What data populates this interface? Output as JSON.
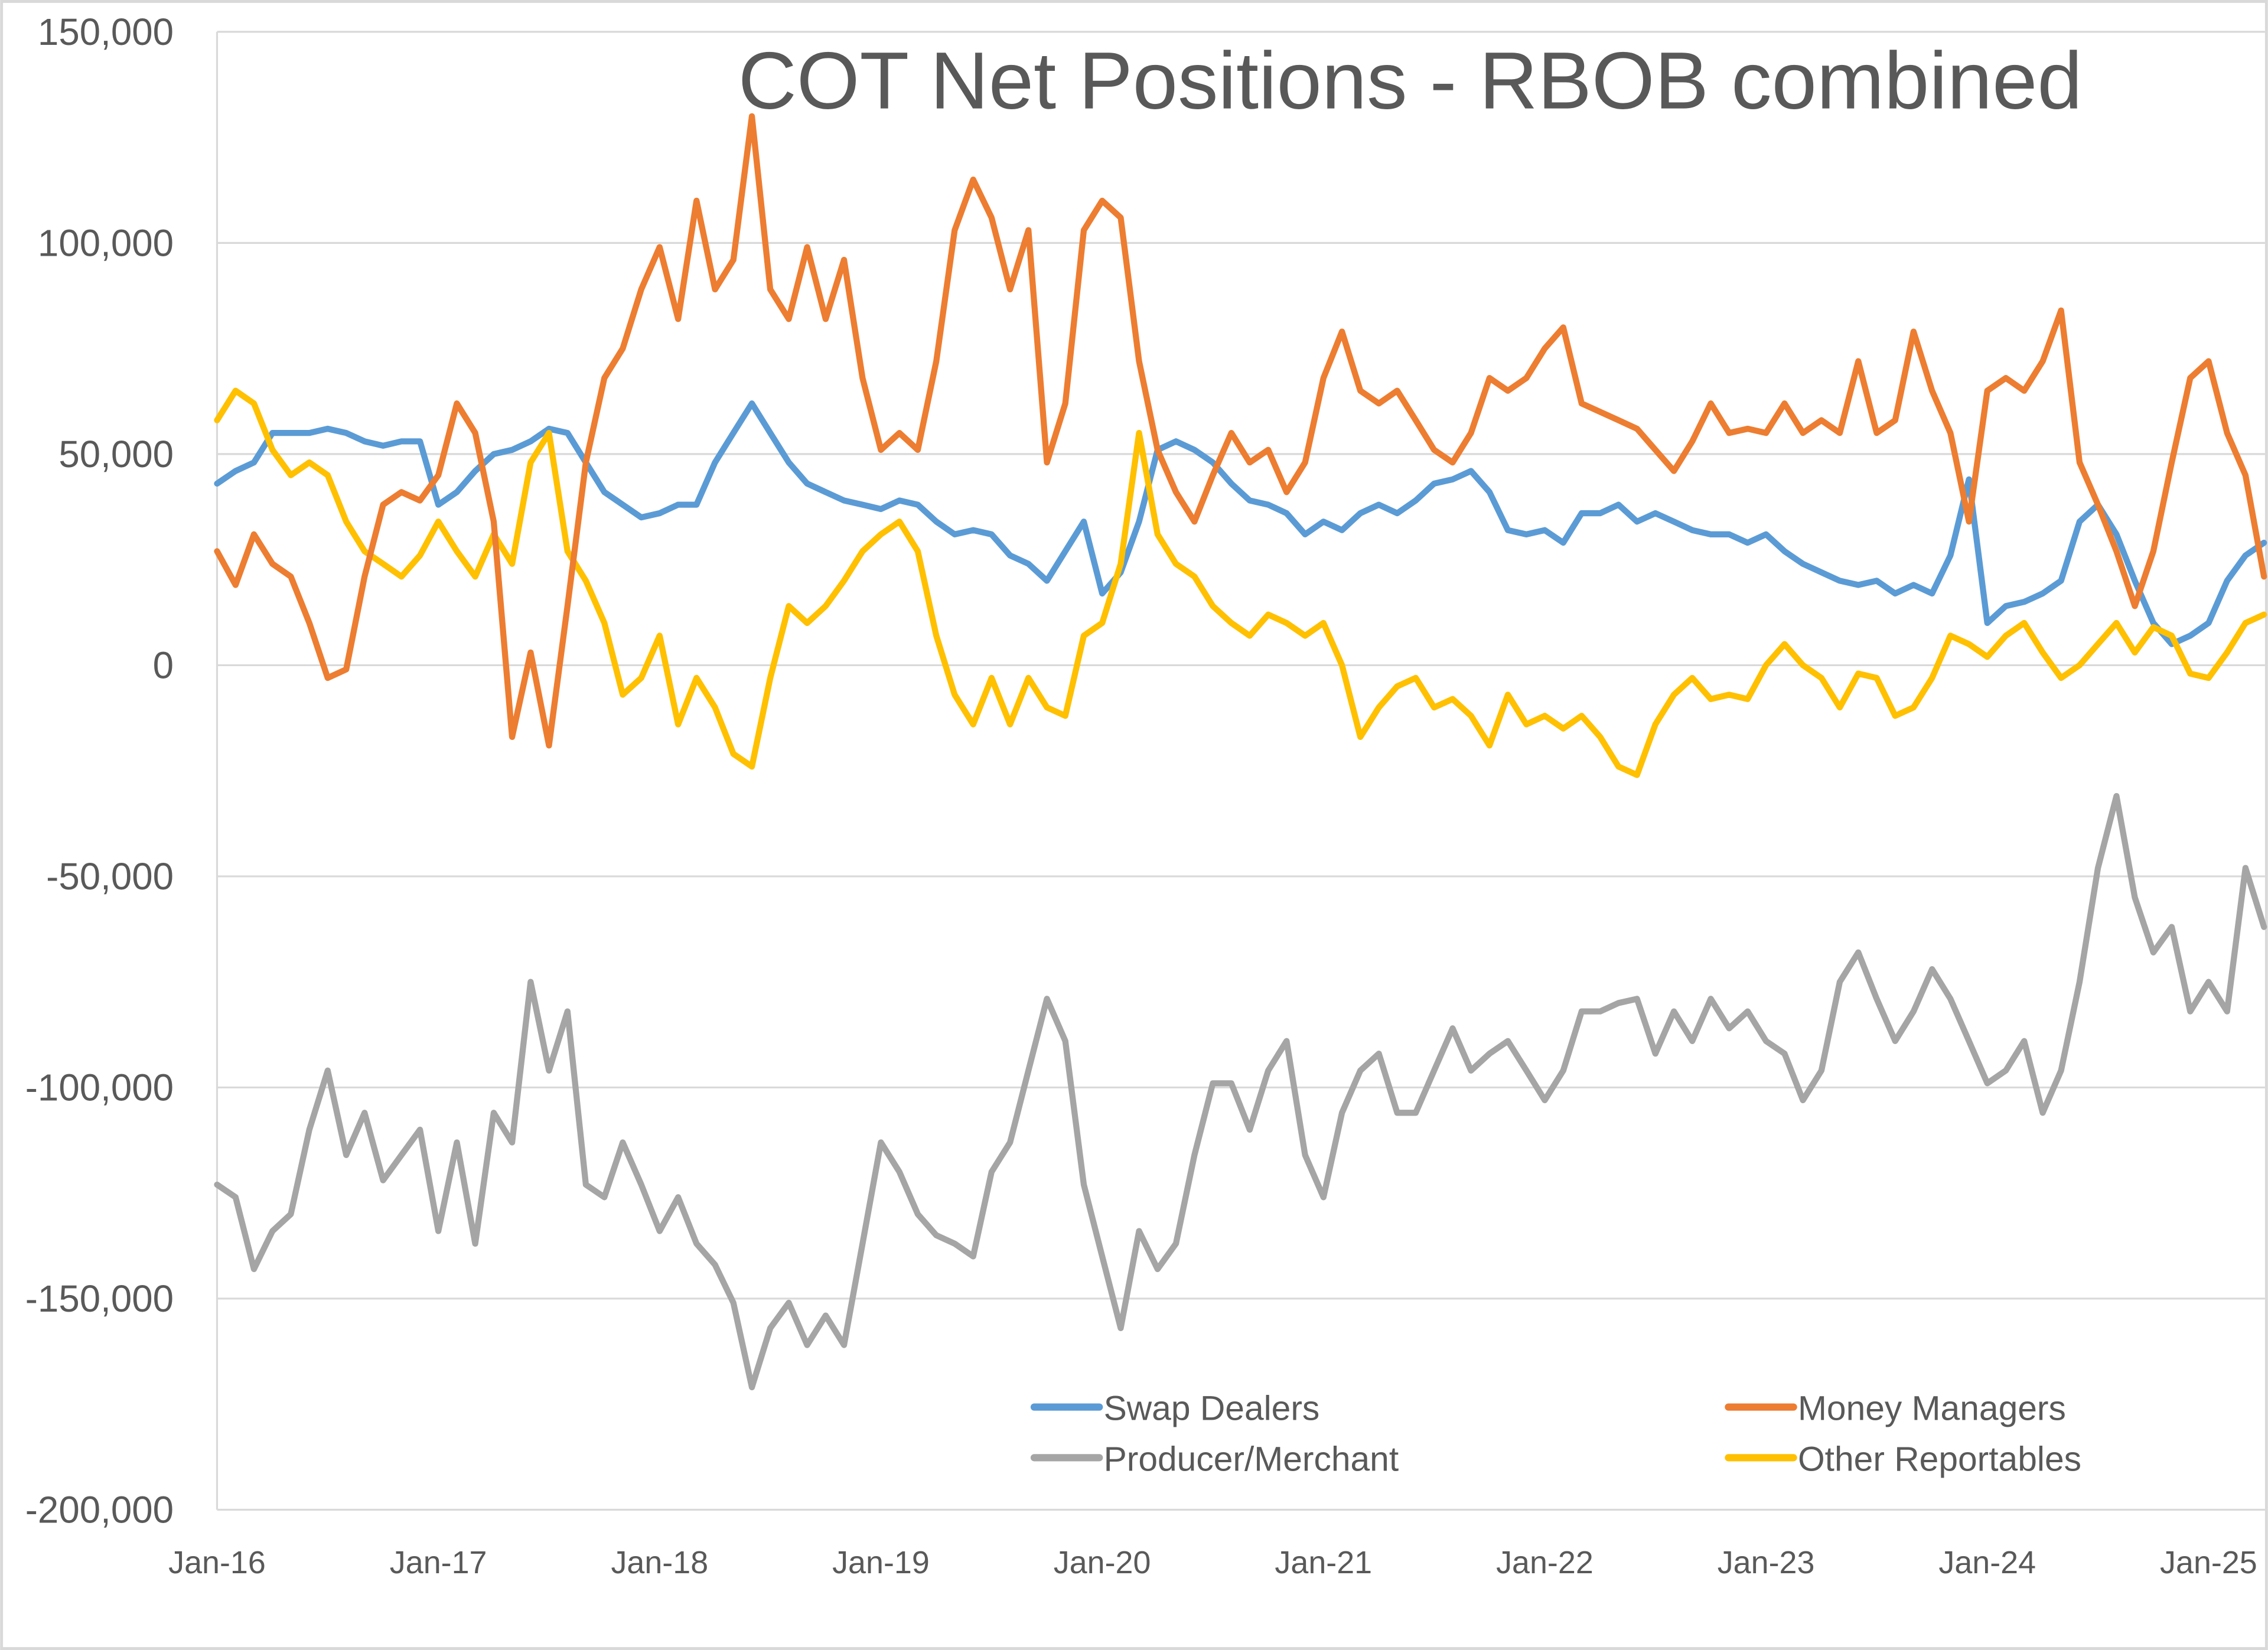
{
  "chart_data": {
    "type": "line",
    "title": "COT Net Positions - RBOB combined",
    "xlabel": "",
    "ylabel": "",
    "ylim": [
      -200000,
      150000
    ],
    "yticks": [
      "150,000",
      "100,000",
      "50,000",
      "0",
      "-50,000",
      "-100,000",
      "-150,000",
      "-200,000"
    ],
    "ytick_values": [
      150000,
      100000,
      50000,
      0,
      -50000,
      -100000,
      -150000,
      -200000
    ],
    "xticks": [
      "Jan-16",
      "Jan-17",
      "Jan-18",
      "Jan-19",
      "Jan-20",
      "Jan-21",
      "Jan-22",
      "Jan-23",
      "Jan-24",
      "Jan-25"
    ],
    "xtick_dates": [
      "2016-01",
      "2017-01",
      "2018-01",
      "2019-01",
      "2020-01",
      "2021-01",
      "2022-01",
      "2023-01",
      "2024-01",
      "2025-01"
    ],
    "grid": true,
    "legend_position": "bottom",
    "x": [
      "2016-01",
      "2016-02",
      "2016-03",
      "2016-04",
      "2016-05",
      "2016-06",
      "2016-07",
      "2016-08",
      "2016-09",
      "2016-10",
      "2016-11",
      "2016-12",
      "2017-01",
      "2017-02",
      "2017-03",
      "2017-04",
      "2017-05",
      "2017-06",
      "2017-07",
      "2017-08",
      "2017-09",
      "2017-10",
      "2017-11",
      "2017-12",
      "2018-01",
      "2018-02",
      "2018-03",
      "2018-04",
      "2018-05",
      "2018-06",
      "2018-07",
      "2018-08",
      "2018-09",
      "2018-10",
      "2018-11",
      "2018-12",
      "2019-01",
      "2019-02",
      "2019-03",
      "2019-04",
      "2019-05",
      "2019-06",
      "2019-07",
      "2019-08",
      "2019-09",
      "2019-10",
      "2019-11",
      "2019-12",
      "2020-01",
      "2020-02",
      "2020-03",
      "2020-04",
      "2020-05",
      "2020-06",
      "2020-07",
      "2020-08",
      "2020-09",
      "2020-10",
      "2020-11",
      "2020-12",
      "2021-01",
      "2021-02",
      "2021-03",
      "2021-04",
      "2021-05",
      "2021-06",
      "2021-07",
      "2021-08",
      "2021-09",
      "2021-10",
      "2021-11",
      "2021-12",
      "2022-01",
      "2022-02",
      "2022-03",
      "2022-04",
      "2022-05",
      "2022-06",
      "2022-07",
      "2022-08",
      "2022-09",
      "2022-10",
      "2022-11",
      "2022-12",
      "2023-01",
      "2023-02",
      "2023-03",
      "2023-04",
      "2023-05",
      "2023-06",
      "2023-07",
      "2023-08",
      "2023-09",
      "2023-10",
      "2023-11",
      "2023-12",
      "2024-01",
      "2024-02",
      "2024-03",
      "2024-04",
      "2024-05",
      "2024-06",
      "2024-07",
      "2024-08",
      "2024-09",
      "2024-10",
      "2024-11",
      "2024-12",
      "2025-01",
      "2025-02",
      "2025-03",
      "2025-04"
    ],
    "series": [
      {
        "name": "Swap Dealers",
        "color": "#5b9bd5",
        "values": [
          43000,
          46000,
          48000,
          55000,
          55000,
          55000,
          56000,
          55000,
          53000,
          52000,
          53000,
          53000,
          38000,
          41000,
          46000,
          50000,
          51000,
          53000,
          56000,
          55000,
          48000,
          41000,
          38000,
          35000,
          36000,
          38000,
          38000,
          48000,
          55000,
          62000,
          55000,
          48000,
          43000,
          41000,
          39000,
          38000,
          37000,
          39000,
          38000,
          34000,
          31000,
          32000,
          31000,
          26000,
          24000,
          20000,
          27000,
          34000,
          17000,
          22000,
          34000,
          51000,
          53000,
          51000,
          48000,
          43000,
          39000,
          38000,
          36000,
          31000,
          34000,
          32000,
          36000,
          38000,
          36000,
          39000,
          43000,
          44000,
          46000,
          41000,
          32000,
          31000,
          32000,
          29000,
          36000,
          36000,
          38000,
          34000,
          36000,
          34000,
          32000,
          31000,
          31000,
          29000,
          31000,
          27000,
          24000,
          22000,
          20000,
          19000,
          20000,
          17000,
          19000,
          17000,
          26000,
          44000,
          10000,
          14000,
          15000,
          17000,
          20000,
          34000,
          38000,
          31000,
          20000,
          10000,
          5000,
          7000,
          10000,
          20000,
          26000,
          29000
        ]
      },
      {
        "name": "Money Managers",
        "color": "#ed7d31",
        "values": [
          27000,
          19000,
          31000,
          24000,
          21000,
          10000,
          -3000,
          -1000,
          21000,
          38000,
          41000,
          39000,
          45000,
          62000,
          55000,
          34000,
          -17000,
          3000,
          -19000,
          14000,
          48000,
          68000,
          75000,
          89000,
          99000,
          82000,
          110000,
          89000,
          96000,
          130000,
          89000,
          82000,
          99000,
          82000,
          96000,
          68000,
          51000,
          55000,
          51000,
          72000,
          103000,
          115000,
          106000,
          89000,
          103000,
          48000,
          62000,
          103000,
          110000,
          106000,
          72000,
          51000,
          41000,
          34000,
          45000,
          55000,
          48000,
          51000,
          41000,
          48000,
          68000,
          79000,
          65000,
          62000,
          65000,
          58000,
          51000,
          48000,
          55000,
          68000,
          65000,
          68000,
          75000,
          80000,
          62000,
          60000,
          58000,
          56000,
          51000,
          46000,
          53000,
          62000,
          55000,
          56000,
          55000,
          62000,
          55000,
          58000,
          55000,
          72000,
          55000,
          58000,
          79000,
          65000,
          55000,
          34000,
          65000,
          68000,
          65000,
          72000,
          84000,
          48000,
          38000,
          27000,
          14000,
          27000,
          48000,
          68000,
          72000,
          55000,
          45000,
          21000
        ]
      },
      {
        "name": "Producer/Merchant",
        "color": "#a5a5a5",
        "values": [
          -123000,
          -126000,
          -143000,
          -134000,
          -130000,
          -110000,
          -96000,
          -116000,
          -106000,
          -122000,
          -116000,
          -110000,
          -134000,
          -113000,
          -137000,
          -106000,
          -113000,
          -75000,
          -96000,
          -82000,
          -123000,
          -126000,
          -113000,
          -123000,
          -134000,
          -126000,
          -137000,
          -142000,
          -151000,
          -171000,
          -157000,
          -151000,
          -161000,
          -154000,
          -161000,
          -137000,
          -113000,
          -120000,
          -130000,
          -135000,
          -137000,
          -140000,
          -120000,
          -113000,
          -96000,
          -79000,
          -89000,
          -123000,
          -140000,
          -157000,
          -134000,
          -143000,
          -137000,
          -116000,
          -99000,
          -99000,
          -110000,
          -96000,
          -89000,
          -116000,
          -126000,
          -106000,
          -96000,
          -92000,
          -106000,
          -106000,
          -96000,
          -86000,
          -96000,
          -92000,
          -89000,
          -96000,
          -103000,
          -96000,
          -82000,
          -82000,
          -80000,
          -79000,
          -92000,
          -82000,
          -89000,
          -79000,
          -86000,
          -82000,
          -89000,
          -92000,
          -103000,
          -96000,
          -75000,
          -68000,
          -79000,
          -89000,
          -82000,
          -72000,
          -79000,
          -89000,
          -99000,
          -96000,
          -89000,
          -106000,
          -96000,
          -75000,
          -48000,
          -31000,
          -55000,
          -68000,
          -62000,
          -82000,
          -75000,
          -82000,
          -48000,
          -62000
        ]
      },
      {
        "name": "Other Reportables",
        "color": "#ffc000",
        "values": [
          58000,
          65000,
          62000,
          51000,
          45000,
          48000,
          45000,
          34000,
          27000,
          24000,
          21000,
          26000,
          34000,
          27000,
          21000,
          31000,
          24000,
          48000,
          55000,
          27000,
          20000,
          10000,
          -7000,
          -3000,
          7000,
          -14000,
          -3000,
          -10000,
          -21000,
          -24000,
          -3000,
          14000,
          10000,
          14000,
          20000,
          27000,
          31000,
          34000,
          27000,
          7000,
          -7000,
          -14000,
          -3000,
          -14000,
          -3000,
          -10000,
          -12000,
          7000,
          10000,
          24000,
          55000,
          31000,
          24000,
          21000,
          14000,
          10000,
          7000,
          12000,
          10000,
          7000,
          10000,
          0,
          -17000,
          -10000,
          -5000,
          -3000,
          -10000,
          -8000,
          -12000,
          -19000,
          -7000,
          -14000,
          -12000,
          -15000,
          -12000,
          -17000,
          -24000,
          -26000,
          -14000,
          -7000,
          -3000,
          -8000,
          -7000,
          -8000,
          0,
          5000,
          0,
          -3000,
          -10000,
          -2000,
          -3000,
          -12000,
          -10000,
          -3000,
          7000,
          5000,
          2000,
          7000,
          10000,
          3000,
          -3000,
          0,
          5000,
          10000,
          3000,
          9000,
          7000,
          -2000,
          -3000,
          3000,
          10000,
          12000
        ]
      }
    ]
  }
}
